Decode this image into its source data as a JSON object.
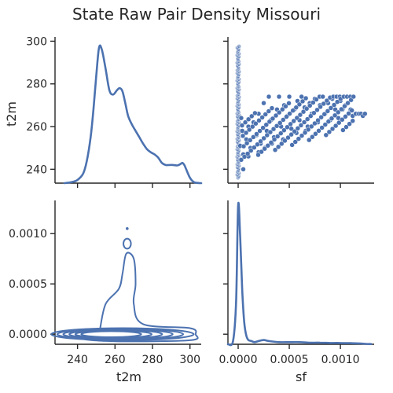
{
  "chart_data": {
    "type": "pairplot",
    "title": "State Raw Pair Density Missouri",
    "variables": [
      "t2m",
      "sf"
    ],
    "color": "#4c72b0",
    "axes": {
      "t2m": {
        "range": [
          228,
          306
        ],
        "ticks": [
          240,
          260,
          280,
          300
        ],
        "label": "t2m"
      },
      "sf": {
        "range": [
          -0.0001,
          0.00133
        ],
        "ticks": [
          0.0,
          0.0005,
          0.001
        ],
        "tick_labels": [
          "0.0000",
          "0.0005",
          "0.0010"
        ],
        "label": "sf"
      },
      "t2m_vert": {
        "range": [
          233.5,
          302
        ],
        "ticks": [
          240,
          260,
          280,
          300
        ],
        "label": "t2m"
      }
    },
    "panels": [
      {
        "position": "top-left",
        "type": "kde",
        "variable": "t2m",
        "density_peak_scale": [
          233.5,
          302
        ],
        "curve": {
          "x": [
            233,
            237,
            240,
            243,
            245,
            247,
            248.5,
            250,
            251.5,
            253,
            255,
            257,
            259,
            261,
            262.5,
            264,
            265.5,
            267,
            269,
            271,
            273,
            275,
            277,
            279,
            281,
            283,
            285,
            287,
            289,
            291,
            293,
            294,
            295,
            296,
            297,
            298,
            300,
            302,
            304,
            306
          ],
          "y": [
            233.5,
            234,
            235,
            238,
            244,
            255,
            268,
            284,
            297,
            296,
            287,
            277,
            275,
            277,
            278,
            276.5,
            271,
            265,
            261,
            258,
            255,
            252,
            249.5,
            248,
            247,
            245.5,
            243,
            242,
            242,
            242,
            241.8,
            242,
            242.5,
            243,
            242,
            240,
            236,
            234,
            233.6,
            233.5
          ]
        }
      },
      {
        "position": "top-right",
        "type": "scatter",
        "x_variable": "sf",
        "y_variable": "t2m",
        "column_at_zero": {
          "y_range": [
            236,
            298
          ]
        },
        "cloud": {
          "points": [
            {
              "x": 2e-05,
              "y": 251
            },
            {
              "x": 4e-05,
              "y": 258
            },
            {
              "x": 3e-05,
              "y": 264
            },
            {
              "x": 5e-05,
              "y": 247
            },
            {
              "x": 8e-05,
              "y": 254
            },
            {
              "x": 0.0001,
              "y": 260
            },
            {
              "x": 0.00012,
              "y": 250
            },
            {
              "x": 0.00015,
              "y": 262
            },
            {
              "x": 0.00018,
              "y": 256
            },
            {
              "x": 0.0002,
              "y": 266
            },
            {
              "x": 0.00022,
              "y": 252
            },
            {
              "x": 0.00025,
              "y": 271
            },
            {
              "x": 0.00028,
              "y": 258
            },
            {
              "x": 0.0003,
              "y": 274
            },
            {
              "x": 0.00032,
              "y": 263
            },
            {
              "x": 0.00035,
              "y": 255
            },
            {
              "x": 0.00038,
              "y": 268
            },
            {
              "x": 0.0004,
              "y": 274
            },
            {
              "x": 0.00042,
              "y": 260
            },
            {
              "x": 0.00045,
              "y": 270
            },
            {
              "x": 0.00048,
              "y": 265
            },
            {
              "x": 0.0005,
              "y": 274
            },
            {
              "x": 0.00052,
              "y": 259
            },
            {
              "x": 0.00055,
              "y": 268
            },
            {
              "x": 0.00058,
              "y": 272
            },
            {
              "x": 0.0006,
              "y": 263
            },
            {
              "x": 0.00062,
              "y": 274
            },
            {
              "x": 0.00065,
              "y": 269
            },
            {
              "x": 0.00068,
              "y": 260
            },
            {
              "x": 0.0007,
              "y": 271
            },
            {
              "x": 0.00072,
              "y": 266
            },
            {
              "x": 0.00075,
              "y": 273
            },
            {
              "x": 0.00078,
              "y": 262
            },
            {
              "x": 0.0008,
              "y": 270
            },
            {
              "x": 0.00082,
              "y": 274
            },
            {
              "x": 0.00085,
              "y": 266
            },
            {
              "x": 0.00088,
              "y": 271
            },
            {
              "x": 0.0009,
              "y": 263
            },
            {
              "x": 0.00092,
              "y": 273
            },
            {
              "x": 0.00095,
              "y": 268
            },
            {
              "x": 0.00098,
              "y": 264
            },
            {
              "x": 0.001,
              "y": 272
            },
            {
              "x": 0.00102,
              "y": 268
            },
            {
              "x": 0.00105,
              "y": 270
            },
            {
              "x": 0.00108,
              "y": 266
            },
            {
              "x": 0.0011,
              "y": 268
            },
            {
              "x": 0.00112,
              "y": 265
            },
            {
              "x": 0.00115,
              "y": 266
            },
            {
              "x": 0.00118,
              "y": 266
            },
            {
              "x": 0.0012,
              "y": 266
            },
            {
              "x": 0.00122,
              "y": 265
            },
            {
              "x": 0.00124,
              "y": 266
            },
            {
              "x": 0.00026,
              "y": 250
            },
            {
              "x": 0.00033,
              "y": 252
            },
            {
              "x": 0.00044,
              "y": 254
            },
            {
              "x": 0.00057,
              "y": 257
            },
            {
              "x": 0.00066,
              "y": 258
            },
            {
              "x": 0.0002,
              "y": 248
            },
            {
              "x": 0.0001,
              "y": 246
            },
            {
              "x": 5e-05,
              "y": 240
            }
          ]
        }
      },
      {
        "position": "bottom-left",
        "type": "kde2d",
        "x_variable": "t2m",
        "y_variable": "sf",
        "contours": [
          {
            "center": [
              258,
              0.0
            ],
            "rx": [
              16,
              38
            ],
            "ry": [
              3e-05,
              6e-05
            ],
            "count": 6
          },
          {
            "island": [
              266.5,
              0.0009
            ],
            "rx": 2,
            "ry": 5e-05
          },
          {
            "marker": [
              266.5,
              0.00105
            ]
          }
        ]
      },
      {
        "position": "bottom-right",
        "type": "kde",
        "variable": "sf",
        "curve": {
          "x": [
            -0.0001,
            -5e-05,
            -2e-05,
            0.0,
            2e-05,
            4e-05,
            6e-05,
            8e-05,
            0.0001,
            0.00013,
            0.00016,
            0.0002,
            0.00025,
            0.0003,
            0.0004,
            0.0005,
            0.0006,
            0.0007,
            0.0008,
            0.0009,
            0.001,
            0.0011,
            0.0012,
            0.00125,
            0.0013
          ],
          "density": [
            0.0,
            0.003,
            0.04,
            0.13,
            0.1,
            0.05,
            0.02,
            0.008,
            0.004,
            0.003,
            0.002,
            0.003,
            0.004,
            0.003,
            0.002,
            0.002,
            0.002,
            0.0015,
            0.0015,
            0.0012,
            0.0012,
            0.001,
            0.0007,
            0.0004,
            0.0002
          ]
        }
      }
    ]
  }
}
